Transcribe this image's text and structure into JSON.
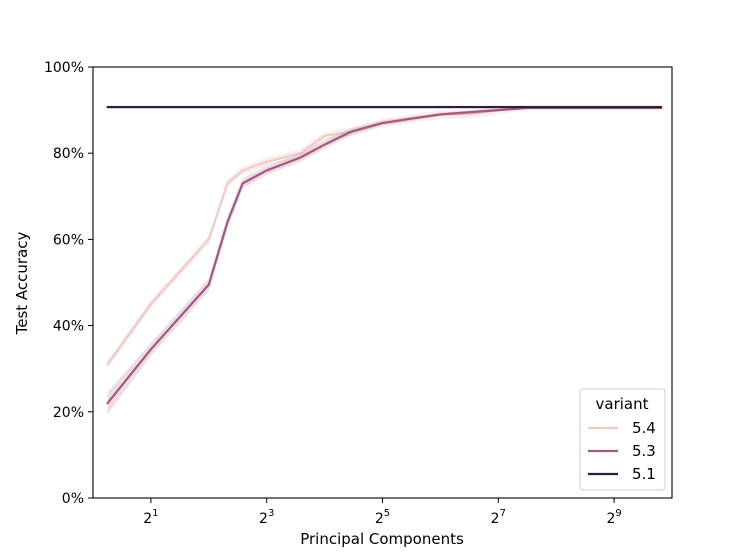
{
  "chart_data": {
    "type": "line",
    "xlabel": "Principal Components",
    "ylabel": "Test Accuracy",
    "x_scale": "log2",
    "xlim": [
      1,
      1024
    ],
    "ylim": [
      0,
      1
    ],
    "x_ticks": [
      {
        "value": 2,
        "base": "2",
        "exp": "1"
      },
      {
        "value": 8,
        "base": "2",
        "exp": "3"
      },
      {
        "value": 32,
        "base": "2",
        "exp": "5"
      },
      {
        "value": 128,
        "base": "2",
        "exp": "7"
      },
      {
        "value": 512,
        "base": "2",
        "exp": "9"
      }
    ],
    "y_ticks": [
      {
        "value": 0.0,
        "label": "0%"
      },
      {
        "value": 0.2,
        "label": "20%"
      },
      {
        "value": 0.4,
        "label": "40%"
      },
      {
        "value": 0.6,
        "label": "60%"
      },
      {
        "value": 0.8,
        "label": "80%"
      },
      {
        "value": 1.0,
        "label": "100%"
      }
    ],
    "grid": false,
    "legend": {
      "title": "variant",
      "placement": "lower-right"
    },
    "series": [
      {
        "name": "5.4",
        "color": "#eecbc6",
        "band_color": "#eecbc6",
        "x": [
          1.19,
          2,
          4,
          5,
          6,
          8,
          12,
          16,
          22,
          32,
          45,
          64,
          90,
          128,
          181,
          256,
          362,
          512,
          724,
          900
        ],
        "y": [
          0.31,
          0.45,
          0.6,
          0.73,
          0.76,
          0.78,
          0.8,
          0.84,
          0.85,
          0.87,
          0.88,
          0.89,
          0.89,
          0.9,
          0.905,
          0.905,
          0.905,
          0.905,
          0.905,
          0.905
        ],
        "band": [
          0.01,
          0.01,
          0.01,
          0.01,
          0.01,
          0.01,
          0.01,
          0.01,
          0.01,
          0.01,
          0.01,
          0.01,
          0.01,
          0.01,
          0.005,
          0.005,
          0.005,
          0.005,
          0.005,
          0.005
        ]
      },
      {
        "name": "5.3",
        "color": "#a3587f",
        "band_color": "#c58aa8",
        "x": [
          1.19,
          2,
          4,
          5,
          6,
          8,
          12,
          16,
          22,
          32,
          45,
          64,
          90,
          128,
          181,
          256,
          362,
          512,
          724,
          900
        ],
        "y": [
          0.22,
          0.345,
          0.495,
          0.64,
          0.73,
          0.76,
          0.79,
          0.82,
          0.85,
          0.87,
          0.88,
          0.89,
          0.895,
          0.9,
          0.905,
          0.905,
          0.905,
          0.905,
          0.905,
          0.905
        ],
        "band": [
          0.025,
          0.015,
          0.015,
          0.015,
          0.012,
          0.01,
          0.01,
          0.01,
          0.008,
          0.006,
          0.005,
          0.004,
          0.004,
          0.003,
          0.003,
          0.003,
          0.003,
          0.003,
          0.003,
          0.003
        ]
      },
      {
        "name": "5.1",
        "color": "#2d1e3e",
        "band_color": "#6a5a7a",
        "x": [
          1.19,
          2,
          4,
          8,
          16,
          32,
          64,
          128,
          256,
          512,
          900
        ],
        "y": [
          0.907,
          0.907,
          0.907,
          0.907,
          0.907,
          0.907,
          0.907,
          0.907,
          0.907,
          0.907,
          0.907
        ],
        "band": [
          0.003,
          0.003,
          0.003,
          0.003,
          0.003,
          0.003,
          0.003,
          0.003,
          0.003,
          0.003,
          0.003
        ]
      }
    ]
  }
}
